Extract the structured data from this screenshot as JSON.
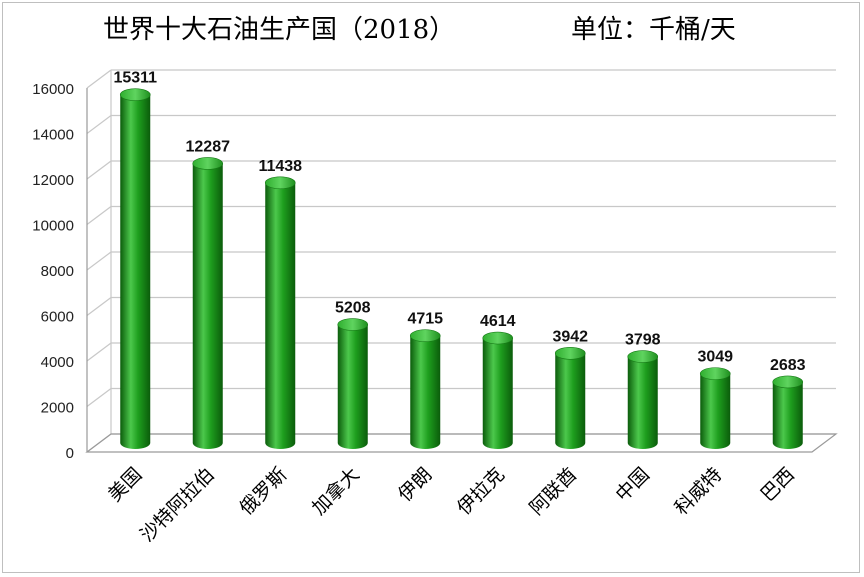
{
  "chart_data": {
    "type": "bar",
    "title": "世界十大石油生产国（2018）",
    "subtitle": "单位：千桶/天",
    "categories": [
      "美国",
      "沙特阿拉伯",
      "俄罗斯",
      "加拿大",
      "伊朗",
      "伊拉克",
      "阿联酋",
      "中国",
      "科威特",
      "巴西"
    ],
    "values": [
      15311,
      12287,
      11438,
      5208,
      4715,
      4614,
      3942,
      3798,
      3049,
      2683
    ],
    "data_labels": [
      "15311",
      "12287",
      "11438",
      "5208",
      "4715",
      "4614",
      "3942",
      "3798",
      "3049",
      "2683"
    ],
    "y_ticks": [
      0,
      2000,
      4000,
      6000,
      8000,
      10000,
      12000,
      14000,
      16000
    ],
    "y_tick_labels": [
      "0",
      "2000",
      "4000",
      "6000",
      "8000",
      "10000",
      "12000",
      "14000",
      "16000"
    ],
    "ylim": [
      0,
      16000
    ],
    "grid": true,
    "legend": "none",
    "style": "3d-cylinder",
    "colors": {
      "bar": "#1e9e1e",
      "bar_dark": "#0b5c0b",
      "bar_light": "#4cc84c",
      "grid": "#c8c8c8"
    }
  }
}
